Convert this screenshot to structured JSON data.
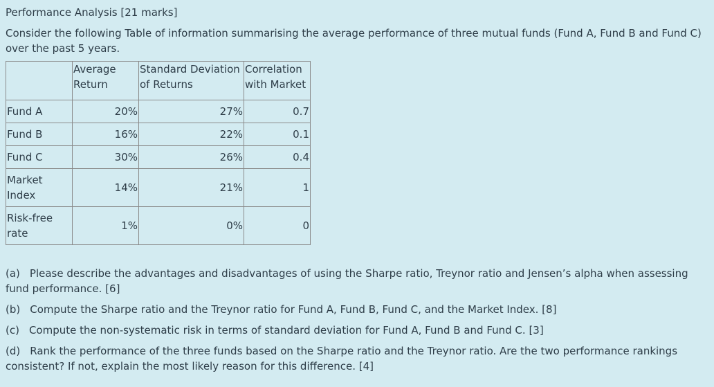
{
  "title": "Performance Analysis [21 marks]",
  "intro": "Consider the following Table of information summarising the average performance of three mutual funds (Fund A, Fund B and Fund C) over the past 5 years.",
  "table": {
    "headers": [
      "",
      "Average Return",
      "Standard Deviation of Returns",
      "Correlation with Market"
    ],
    "header_lines": [
      [
        ""
      ],
      [
        "Average",
        "Return"
      ],
      [
        "Standard Deviation",
        "of Returns"
      ],
      [
        "Correlation",
        "with Market"
      ]
    ],
    "rows": [
      {
        "label": "Fund A",
        "label_lines": [
          "Fund A"
        ],
        "avg_return": "20%",
        "std_dev": "27%",
        "correlation": "0.7"
      },
      {
        "label": "Fund B",
        "label_lines": [
          "Fund B"
        ],
        "avg_return": "16%",
        "std_dev": "22%",
        "correlation": "0.1"
      },
      {
        "label": "Fund C",
        "label_lines": [
          "Fund C"
        ],
        "avg_return": "30%",
        "std_dev": "26%",
        "correlation": "0.4"
      },
      {
        "label": "Market Index",
        "label_lines": [
          "Market",
          "Index"
        ],
        "avg_return": "14%",
        "std_dev": "21%",
        "correlation": "1"
      },
      {
        "label": "Risk-free rate",
        "label_lines": [
          "Risk-free",
          "rate"
        ],
        "avg_return": "1%",
        "std_dev": "0%",
        "correlation": "0"
      }
    ]
  },
  "questions": [
    {
      "tag": "(a)",
      "text": "Please describe the advantages and disadvantages of using the Sharpe ratio, Treynor ratio and Jensen’s alpha when assessing fund performance. [6]"
    },
    {
      "tag": "(b)",
      "text": "Compute the Sharpe ratio and the Treynor ratio for Fund A, Fund B, Fund C, and the Market Index. [8]"
    },
    {
      "tag": "(c)",
      "text": "Compute the non-systematic risk in terms of standard deviation for Fund A, Fund B and Fund C. [3]"
    },
    {
      "tag": "(d)",
      "text": "Rank the performance of the three funds based on the Sharpe ratio and the Treynor ratio. Are the two performance rankings consistent? If not, explain the most likely reason for this difference. [4]"
    }
  ],
  "colors": {
    "background": "#d3ebf1",
    "text": "#2e3d48",
    "table_border": "#3a3a3a"
  }
}
